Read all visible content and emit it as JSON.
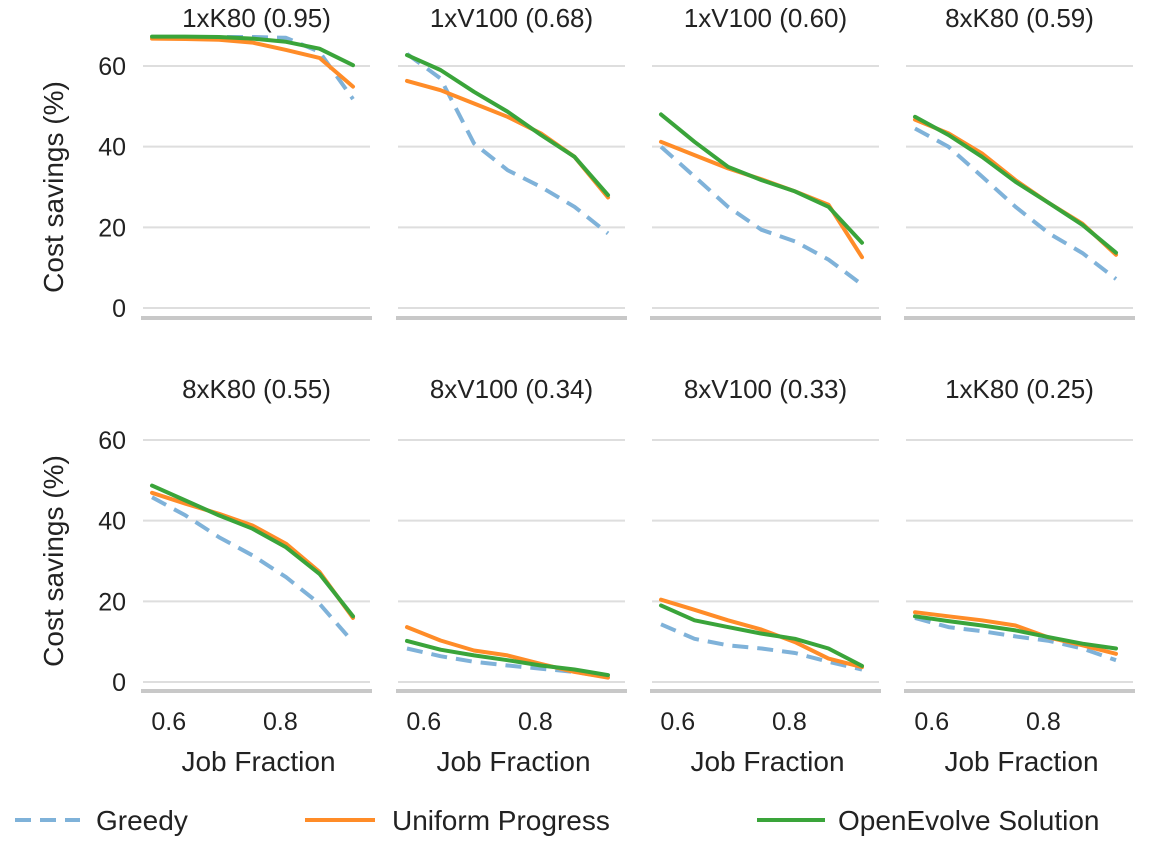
{
  "chart_data": {
    "type": "line",
    "layout": "small-multiples 2x4",
    "x": [
      0.57,
      0.63,
      0.69,
      0.75,
      0.81,
      0.87,
      0.93
    ],
    "xlabel": "Job Fraction",
    "ylabel": "Cost savings (%)",
    "xticks": [
      0.6,
      0.8
    ],
    "xtick_labels": [
      "0.6",
      "0.8"
    ],
    "yticks": [
      0,
      20,
      40,
      60
    ],
    "ytick_labels": [
      "0",
      "20",
      "40",
      "60"
    ],
    "ylim": [
      0,
      67
    ],
    "grid": "horizontal",
    "legend": {
      "placement": "bottom",
      "entries": [
        {
          "name": "Greedy",
          "color": "#7fb2d9",
          "style": "dashed"
        },
        {
          "name": "Uniform Progress",
          "color": "#ff8c28",
          "style": "solid"
        },
        {
          "name": "OpenEvolve Solution",
          "color": "#3aa43a",
          "style": "solid"
        }
      ]
    },
    "panels": [
      {
        "title": "1xK80 (0.95)",
        "series": [
          {
            "name": "Greedy",
            "values": [
              67.2,
              67.2,
              67.2,
              67.2,
              67.0,
              63.5,
              51.8
            ]
          },
          {
            "name": "Uniform Progress",
            "values": [
              66.8,
              66.7,
              66.5,
              65.8,
              64.0,
              62.0,
              54.9
            ]
          },
          {
            "name": "OpenEvolve Solution",
            "values": [
              67.3,
              67.3,
              67.2,
              66.8,
              66.0,
              64.3,
              60.2
            ]
          }
        ]
      },
      {
        "title": "1xV100 (0.68)",
        "series": [
          {
            "name": "Greedy",
            "values": [
              63.0,
              56.9,
              40.8,
              34.2,
              30.0,
              25.1,
              18.5
            ]
          },
          {
            "name": "Uniform Progress",
            "values": [
              56.3,
              54.0,
              50.7,
              47.4,
              43.3,
              37.5,
              27.4
            ]
          },
          {
            "name": "OpenEvolve Solution",
            "values": [
              62.7,
              59.0,
              53.6,
              48.7,
              42.9,
              37.5,
              28.0
            ]
          }
        ]
      },
      {
        "title": "1xV100 (0.60)",
        "series": [
          {
            "name": "Greedy",
            "values": [
              40.0,
              32.6,
              25.1,
              19.4,
              16.5,
              12.0,
              5.8
            ]
          },
          {
            "name": "Uniform Progress",
            "values": [
              41.2,
              37.9,
              34.6,
              31.9,
              28.9,
              25.6,
              12.6
            ]
          },
          {
            "name": "OpenEvolve Solution",
            "values": [
              48.0,
              41.2,
              35.0,
              31.7,
              28.9,
              25.1,
              16.2
            ]
          }
        ]
      },
      {
        "title": "8xK80 (0.59)",
        "series": [
          {
            "name": "Greedy",
            "values": [
              44.5,
              40.0,
              32.6,
              25.1,
              18.5,
              13.6,
              7.2
            ]
          },
          {
            "name": "Uniform Progress",
            "values": [
              46.7,
              43.3,
              38.3,
              31.7,
              26.0,
              20.9,
              13.2
            ]
          },
          {
            "name": "OpenEvolve Solution",
            "values": [
              47.4,
              42.9,
              37.5,
              31.3,
              26.0,
              20.6,
              13.7
            ]
          }
        ]
      },
      {
        "title": "8xK80 (0.55)",
        "series": [
          {
            "name": "Greedy",
            "values": [
              45.8,
              41.3,
              35.9,
              31.4,
              26.0,
              19.4,
              9.9
            ]
          },
          {
            "name": "Uniform Progress",
            "values": [
              46.9,
              44.2,
              41.7,
              38.8,
              34.3,
              27.3,
              15.9
            ]
          },
          {
            "name": "OpenEvolve Solution",
            "values": [
              48.7,
              45.0,
              41.3,
              38.0,
              33.4,
              26.8,
              16.3
            ]
          }
        ]
      },
      {
        "title": "8xV100 (0.34)",
        "series": [
          {
            "name": "Greedy",
            "values": [
              8.3,
              6.4,
              5.0,
              4.1,
              3.3,
              2.5,
              1.2
            ]
          },
          {
            "name": "Uniform Progress",
            "values": [
              13.6,
              10.3,
              7.8,
              6.6,
              4.5,
              2.5,
              1.1
            ]
          },
          {
            "name": "OpenEvolve Solution",
            "values": [
              10.2,
              8.0,
              6.6,
              5.4,
              4.1,
              3.1,
              1.7
            ]
          }
        ]
      },
      {
        "title": "8xV100 (0.33)",
        "series": [
          {
            "name": "Greedy",
            "values": [
              14.3,
              10.7,
              9.1,
              8.3,
              7.2,
              5.0,
              3.1
            ]
          },
          {
            "name": "Uniform Progress",
            "values": [
              20.4,
              17.9,
              15.3,
              13.0,
              9.9,
              5.8,
              3.7
            ]
          },
          {
            "name": "OpenEvolve Solution",
            "values": [
              19.0,
              15.3,
              13.6,
              12.0,
              10.7,
              8.3,
              4.0
            ]
          }
        ]
      },
      {
        "title": "1xK80 (0.25)",
        "series": [
          {
            "name": "Greedy",
            "values": [
              15.9,
              13.6,
              12.6,
              11.3,
              10.2,
              8.3,
              5.4
            ]
          },
          {
            "name": "Uniform Progress",
            "values": [
              17.3,
              16.3,
              15.3,
              14.0,
              11.0,
              9.1,
              7.0
            ]
          },
          {
            "name": "OpenEvolve Solution",
            "values": [
              16.3,
              15.1,
              14.0,
              12.8,
              11.1,
              9.5,
              8.3
            ]
          }
        ]
      }
    ]
  }
}
